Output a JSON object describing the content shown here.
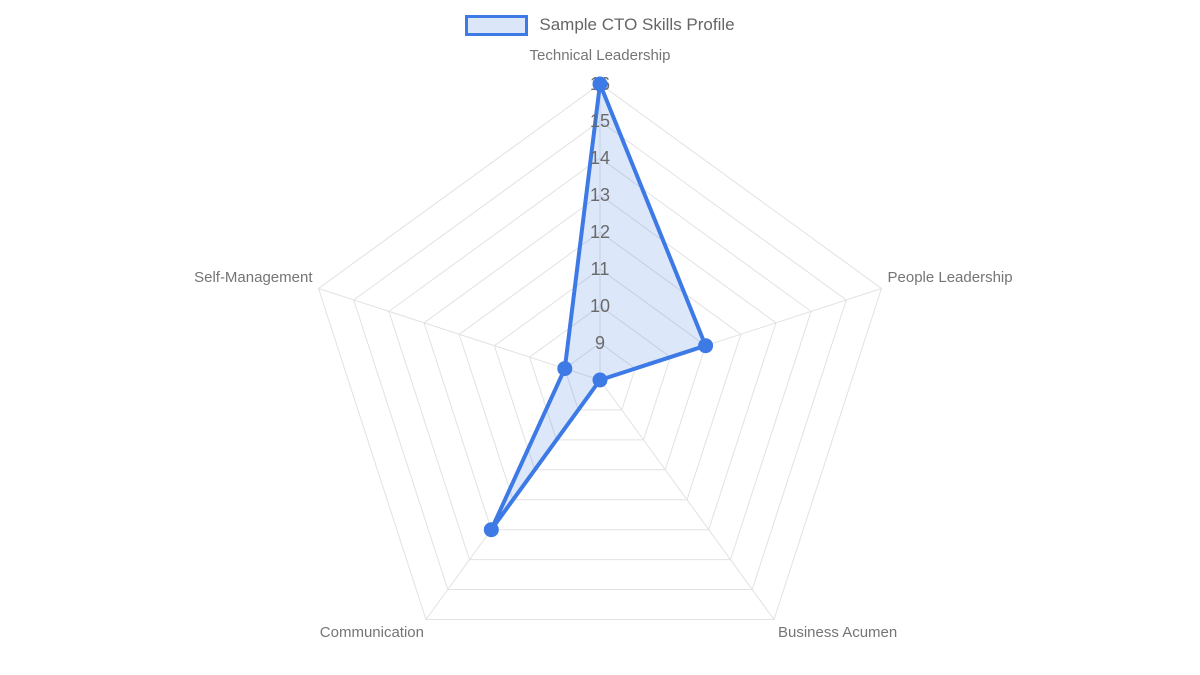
{
  "legend": {
    "label": "Sample CTO Skills Profile"
  },
  "chart_data": {
    "type": "radar",
    "title": "Sample CTO Skills Profile",
    "categories": [
      "Technical Leadership",
      "People Leadership",
      "Business Acumen",
      "Communication",
      "Self-Management"
    ],
    "series": [
      {
        "name": "Sample CTO Skills Profile",
        "values": [
          16,
          11,
          8,
          13,
          9
        ]
      }
    ],
    "radial_axis": {
      "min": 8,
      "max": 16,
      "tick_step": 1,
      "tick_labels": [
        "9",
        "10",
        "11",
        "12",
        "13",
        "14",
        "15",
        "16"
      ]
    },
    "grid": true,
    "rings": 8,
    "legend_position": "top-center",
    "colors": {
      "series_line": "#3d7ae5",
      "series_fill": "rgba(61,122,229,0.18)",
      "legend_swatch_fill": "#dbe6f9",
      "grid_line": "#e2e2e2",
      "tick_label": "#6a6a6a",
      "axis_label": "#757575",
      "legend_text": "#666666",
      "background": "#ffffff"
    }
  }
}
